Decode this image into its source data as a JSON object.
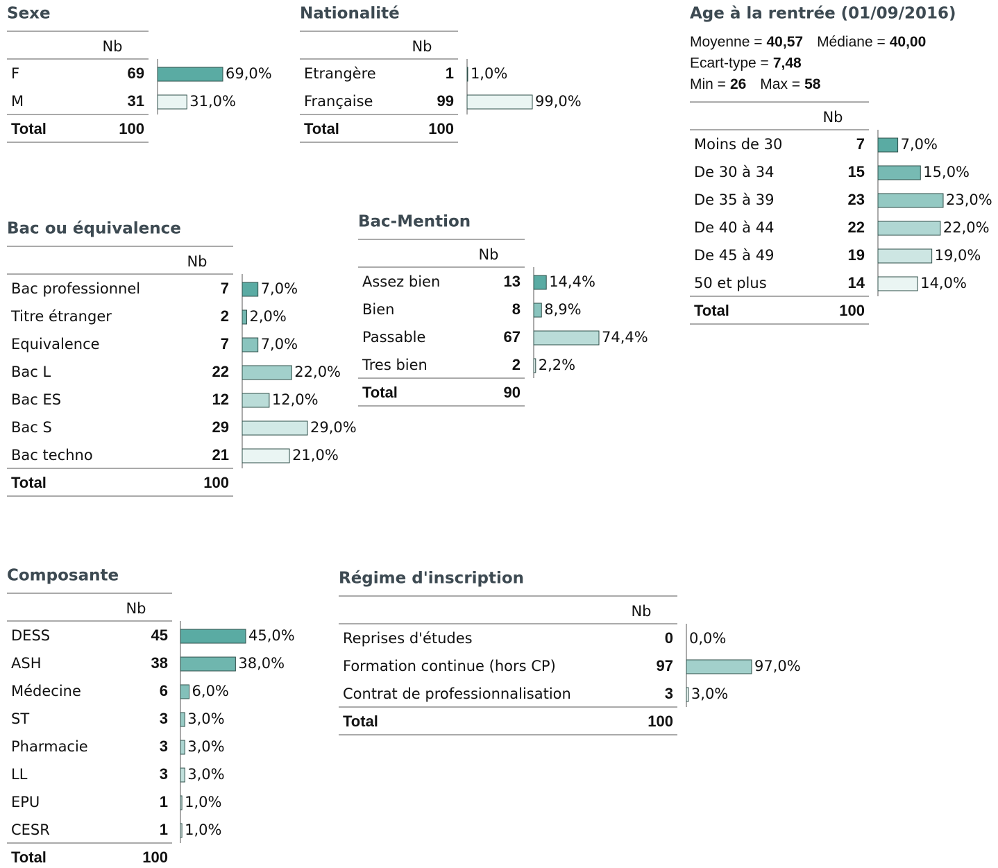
{
  "tables": [
    {
      "title": "Sexe",
      "header": "Nb",
      "rows": [
        {
          "label": "F",
          "nb": 69,
          "pct": 69.0,
          "pct_label": "69,0%"
        },
        {
          "label": "M",
          "nb": 31,
          "pct": 31.0,
          "pct_label": "31,0%"
        }
      ],
      "total_label": "Total",
      "total": 100
    },
    {
      "title": "Nationalité",
      "header": "Nb",
      "rows": [
        {
          "label": "Etrangère",
          "nb": 1,
          "pct": 1.0,
          "pct_label": "1,0%"
        },
        {
          "label": "Française",
          "nb": 99,
          "pct": 99.0,
          "pct_label": "99,0%"
        }
      ],
      "total_label": "Total",
      "total": 100
    },
    {
      "title": "Age à la rentrée (01/09/2016)",
      "stats": [
        [
          {
            "label": "Moyenne =",
            "value": "40,57"
          },
          {
            "label": "Médiane =",
            "value": "40,00"
          }
        ],
        [
          {
            "label": "Ecart-type =",
            "value": "7,48"
          }
        ],
        [
          {
            "label": "Min =",
            "value": "26"
          },
          {
            "label": "Max =",
            "value": "58"
          }
        ]
      ],
      "header": "Nb",
      "rows": [
        {
          "label": "Moins de 30",
          "nb": 7,
          "pct": 7.0,
          "pct_label": "7,0%"
        },
        {
          "label": "De 30 à 34",
          "nb": 15,
          "pct": 15.0,
          "pct_label": "15,0%"
        },
        {
          "label": "De 35 à 39",
          "nb": 23,
          "pct": 23.0,
          "pct_label": "23,0%"
        },
        {
          "label": "De 40 à 44",
          "nb": 22,
          "pct": 22.0,
          "pct_label": "22,0%"
        },
        {
          "label": "De 45 à 49",
          "nb": 19,
          "pct": 19.0,
          "pct_label": "19,0%"
        },
        {
          "label": "50 et plus",
          "nb": 14,
          "pct": 14.0,
          "pct_label": "14,0%"
        }
      ],
      "total_label": "Total",
      "total": 100
    },
    {
      "title": "Bac ou équivalence",
      "header": "Nb",
      "rows": [
        {
          "label": "Bac professionnel",
          "nb": 7,
          "pct": 7.0,
          "pct_label": "7,0%"
        },
        {
          "label": "Titre étranger",
          "nb": 2,
          "pct": 2.0,
          "pct_label": "2,0%"
        },
        {
          "label": "Equivalence",
          "nb": 7,
          "pct": 7.0,
          "pct_label": "7,0%"
        },
        {
          "label": "Bac L",
          "nb": 22,
          "pct": 22.0,
          "pct_label": "22,0%"
        },
        {
          "label": "Bac ES",
          "nb": 12,
          "pct": 12.0,
          "pct_label": "12,0%"
        },
        {
          "label": "Bac S",
          "nb": 29,
          "pct": 29.0,
          "pct_label": "29,0%"
        },
        {
          "label": "Bac techno",
          "nb": 21,
          "pct": 21.0,
          "pct_label": "21,0%"
        }
      ],
      "total_label": "Total",
      "total": 100
    },
    {
      "title": "Bac-Mention",
      "header": "Nb",
      "rows": [
        {
          "label": "Assez bien",
          "nb": 13,
          "pct": 14.4,
          "pct_label": "14,4%"
        },
        {
          "label": "Bien",
          "nb": 8,
          "pct": 8.9,
          "pct_label": "8,9%"
        },
        {
          "label": "Passable",
          "nb": 67,
          "pct": 74.4,
          "pct_label": "74,4%"
        },
        {
          "label": "Tres bien",
          "nb": 2,
          "pct": 2.2,
          "pct_label": "2,2%"
        }
      ],
      "total_label": "Total",
      "total": 90
    },
    {
      "title": "Composante",
      "header": "Nb",
      "rows": [
        {
          "label": "DESS",
          "nb": 45,
          "pct": 45.0,
          "pct_label": "45,0%"
        },
        {
          "label": "ASH",
          "nb": 38,
          "pct": 38.0,
          "pct_label": "38,0%"
        },
        {
          "label": "Médecine",
          "nb": 6,
          "pct": 6.0,
          "pct_label": "6,0%"
        },
        {
          "label": "ST",
          "nb": 3,
          "pct": 3.0,
          "pct_label": "3,0%"
        },
        {
          "label": "Pharmacie",
          "nb": 3,
          "pct": 3.0,
          "pct_label": "3,0%"
        },
        {
          "label": "LL",
          "nb": 3,
          "pct": 3.0,
          "pct_label": "3,0%"
        },
        {
          "label": "EPU",
          "nb": 1,
          "pct": 1.0,
          "pct_label": "1,0%"
        },
        {
          "label": "CESR",
          "nb": 1,
          "pct": 1.0,
          "pct_label": "1,0%"
        }
      ],
      "total_label": "Total",
      "total": 100
    },
    {
      "title": "Régime d'inscription",
      "header": "Nb",
      "rows": [
        {
          "label": "Reprises d'études",
          "nb": 0,
          "pct": 0.0,
          "pct_label": "0,0%"
        },
        {
          "label": "Formation continue (hors CP)",
          "nb": 97,
          "pct": 97.0,
          "pct_label": "97,0%"
        },
        {
          "label": "Contrat de professionnalisation",
          "nb": 3,
          "pct": 3.0,
          "pct_label": "3,0%"
        }
      ],
      "total_label": "Total",
      "total": 100
    }
  ]
}
